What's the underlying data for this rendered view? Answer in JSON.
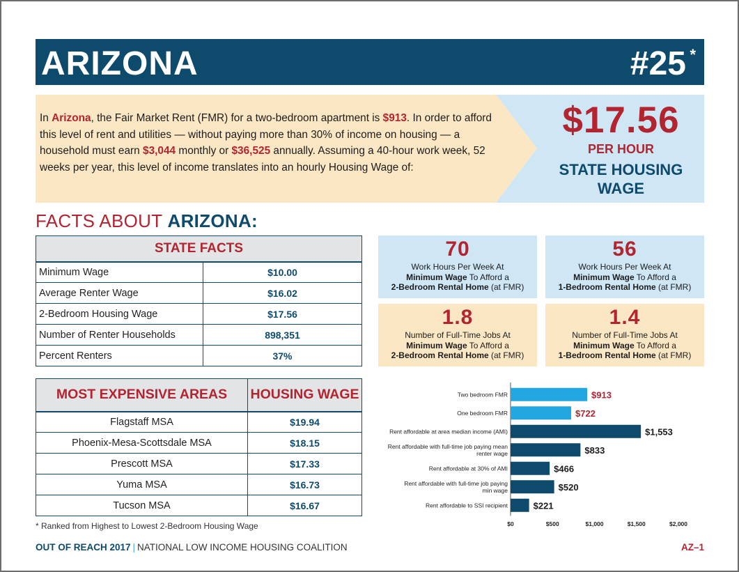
{
  "header": {
    "state": "ARIZONA",
    "rank": "#25",
    "rank_note_mark": "*"
  },
  "intro": {
    "p1": "In ",
    "state": "Arizona",
    "p2": ", the Fair Market Rent (FMR) for a two-bedroom apartment is ",
    "fmr": "$913",
    "p3": ". In order to afford this level of rent and utilities — without paying more than 30% of income on housing — a household must earn ",
    "monthly": "$3,044",
    "p4": " monthly or ",
    "annual": "$36,525",
    "p5": " annually. Assuming a 40-hour work week, 52 weeks per year, this level of income translates into an hourly Housing Wage of:"
  },
  "housing_wage": {
    "amount": "$17.56",
    "per": "PER HOUR",
    "label": "STATE HOUSING WAGE"
  },
  "facts_title": {
    "prefix": "FACTS ABOUT ",
    "state": "ARIZONA:"
  },
  "state_facts": {
    "heading": "STATE FACTS",
    "rows": [
      {
        "label": "Minimum Wage",
        "value": "$10.00"
      },
      {
        "label": "Average Renter Wage",
        "value": "$16.02"
      },
      {
        "label": "2-Bedroom Housing Wage",
        "value": "$17.56"
      },
      {
        "label": "Number of Renter Households",
        "value": "898,351"
      },
      {
        "label": "Percent Renters",
        "value": "37%"
      }
    ]
  },
  "expensive_areas": {
    "col1": "MOST EXPENSIVE AREAS",
    "col2": "HOUSING WAGE",
    "rows": [
      {
        "area": "Flagstaff MSA",
        "wage": "$19.94"
      },
      {
        "area": "Phoenix-Mesa-Scottsdale MSA",
        "wage": "$18.15"
      },
      {
        "area": "Prescott MSA",
        "wage": "$17.33"
      },
      {
        "area": "Yuma MSA",
        "wage": "$16.73"
      },
      {
        "area": "Tucson MSA",
        "wage": "$16.67"
      }
    ]
  },
  "footnote": "* Ranked from Highest to Lowest 2-Bedroom Housing Wage",
  "stats": [
    {
      "number": "70",
      "line1": "Work Hours Per Week At",
      "bold": "Minimum Wage",
      "line2": " To Afford a",
      "bold2": "2-Bedroom Rental Home",
      "line3": " (at FMR)"
    },
    {
      "number": "56",
      "line1": "Work Hours Per Week At",
      "bold": "Minimum Wage",
      "line2": " To Afford a",
      "bold2": "1-Bedroom Rental Home",
      "line3": " (at FMR)"
    },
    {
      "number": "1.8",
      "line1": "Number of Full-Time Jobs At",
      "bold": "Minimum Wage",
      "line2": " To Afford a",
      "bold2": "2-Bedroom Rental Home",
      "line3": " (at FMR)"
    },
    {
      "number": "1.4",
      "line1": "Number of Full-Time Jobs At",
      "bold": "Minimum Wage",
      "line2": " To Afford a",
      "bold2": "1-Bedroom Rental Home",
      "line3": " (at FMR)"
    }
  ],
  "chart_data": {
    "type": "bar",
    "orientation": "horizontal",
    "categories": [
      [
        "Two bedroom FMR"
      ],
      [
        "One bedroom FMR"
      ],
      [
        "Rent affordable at area median income (AMI)"
      ],
      [
        "Rent affordable with full-time job paying mean",
        "renter wage"
      ],
      [
        "Rent affordable at 30% of AMI"
      ],
      [
        "Rent affordable with full-time job paying",
        "min wage"
      ],
      [
        "Rent affordable to SSI recipient"
      ]
    ],
    "values": [
      913,
      722,
      1553,
      833,
      466,
      520,
      221
    ],
    "value_labels": [
      "$913",
      "$722",
      "$1,553",
      "$833",
      "$466",
      "$520",
      "$221"
    ],
    "colors": [
      "#22a7e0",
      "#22a7e0",
      "#0d4a6b",
      "#0d4a6b",
      "#0d4a6b",
      "#0d4a6b",
      "#0d4a6b"
    ],
    "label_colors": [
      "#b22530",
      "#b22530",
      "#1c1c1c",
      "#1c1c1c",
      "#1c1c1c",
      "#1c1c1c",
      "#1c1c1c"
    ],
    "xticks": [
      "$0",
      "$500",
      "$1,000",
      "$1,500",
      "$2,000"
    ],
    "xlim": [
      0,
      2000
    ],
    "grid": false
  },
  "footer": {
    "report": "OUT OF REACH 2017",
    "separator": "|",
    "org": "NATIONAL LOW INCOME HOUSING COALITION",
    "page": "AZ–1"
  }
}
